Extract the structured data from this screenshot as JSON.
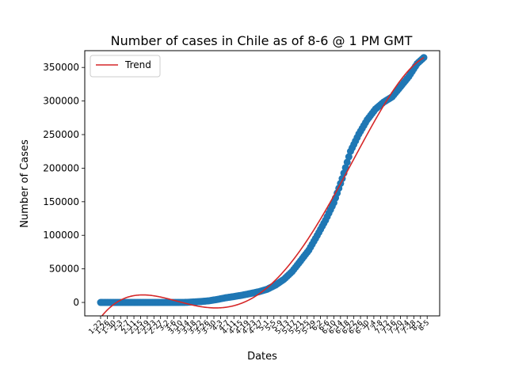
{
  "chart_data": {
    "type": "scatter",
    "title": "Number of cases in Chile as of 8-6 @ 1 PM GMT",
    "xlabel": "Dates",
    "ylabel": "Number of Cases",
    "x_range": [
      0,
      194
    ],
    "ylim": [
      -20000,
      375000
    ],
    "yticks": [
      0,
      50000,
      100000,
      150000,
      200000,
      250000,
      300000,
      350000
    ],
    "x_tick_labels": [
      "1-22",
      "1-26",
      "1-30",
      "2-3",
      "2-7",
      "2-11",
      "2-15",
      "2-19",
      "2-23",
      "2-27",
      "3-2",
      "3-6",
      "3-10",
      "3-14",
      "3-18",
      "3-22",
      "3-26",
      "3-30",
      "4-3",
      "4-7",
      "4-11",
      "4-15",
      "4-19",
      "4-23",
      "4-27",
      "5-1",
      "5-5",
      "5-9",
      "5-13",
      "5-17",
      "5-21",
      "5-25",
      "5-29",
      "6-2",
      "6-6",
      "6-10",
      "6-14",
      "6-18",
      "6-22",
      "6-26",
      "6-30",
      "7-4",
      "7-8",
      "7-12",
      "7-16",
      "7-20",
      "7-24",
      "7-28",
      "8-1",
      "8-5"
    ],
    "x_tick_step": 4,
    "series": [
      {
        "kind": "scatter",
        "color": "#1f77b4",
        "points": [
          [
            0,
            0
          ],
          [
            41,
            1
          ],
          [
            45,
            5
          ],
          [
            50,
            75
          ],
          [
            52,
            238
          ],
          [
            55,
            632
          ],
          [
            60,
            1306
          ],
          [
            65,
            2449
          ],
          [
            70,
            4471
          ],
          [
            75,
            6927
          ],
          [
            80,
            8807
          ],
          [
            85,
            10832
          ],
          [
            90,
            13331
          ],
          [
            95,
            16023
          ],
          [
            100,
            19663
          ],
          [
            105,
            25972
          ],
          [
            110,
            34381
          ],
          [
            115,
            46059
          ],
          [
            120,
            61857
          ],
          [
            125,
            77961
          ],
          [
            130,
            99688
          ],
          [
            135,
            122499
          ],
          [
            140,
            148456
          ],
          [
            145,
            184449
          ],
          [
            150,
            225103
          ],
          [
            155,
            250767
          ],
          [
            160,
            271982
          ],
          [
            165,
            288089
          ],
          [
            170,
            298557
          ],
          [
            175,
            306216
          ],
          [
            180,
            321205
          ],
          [
            185,
            336402
          ],
          [
            190,
            355667
          ],
          [
            194,
            364723
          ]
        ]
      },
      {
        "kind": "line",
        "name": "Trend",
        "color": "#d62728",
        "degree": 4
      }
    ],
    "legend": {
      "entries": [
        "Trend"
      ],
      "position": "upper left"
    },
    "grid": false
  }
}
